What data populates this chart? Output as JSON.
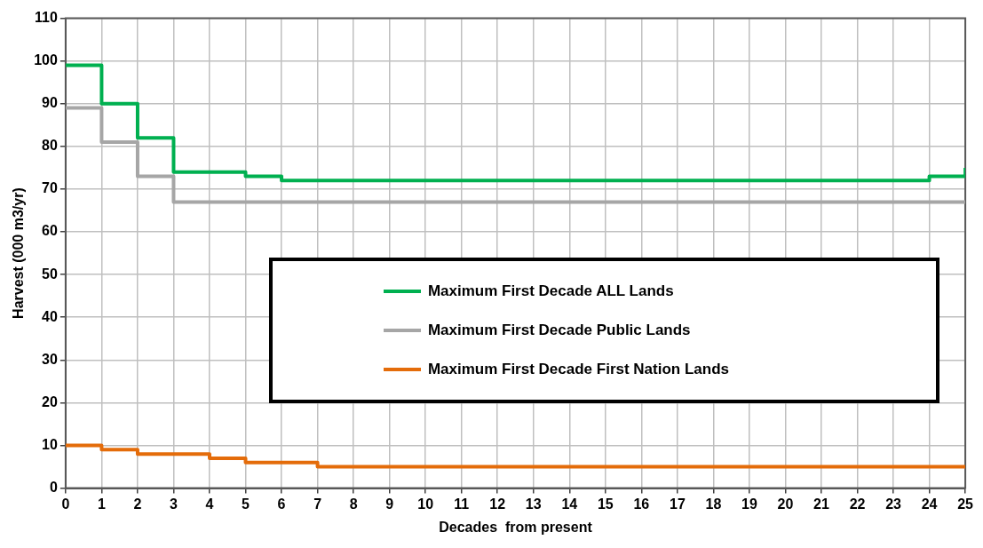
{
  "chart_data": {
    "type": "step",
    "xlabel": "Decades  from present",
    "ylabel": "Harvest (000 m3/yr)",
    "x": [
      0,
      1,
      2,
      3,
      4,
      5,
      6,
      7,
      8,
      9,
      10,
      11,
      12,
      13,
      14,
      15,
      16,
      17,
      18,
      19,
      20,
      21,
      22,
      23,
      24,
      25
    ],
    "series": [
      {
        "name": "Maximum First Decade ALL Lands",
        "color": "#00b050",
        "values": [
          99,
          90,
          82,
          74,
          74,
          73,
          72,
          72,
          72,
          72,
          72,
          72,
          72,
          72,
          72,
          72,
          72,
          72,
          72,
          72,
          72,
          72,
          72,
          72,
          73,
          75
        ]
      },
      {
        "name": "Maximum First Decade Public Lands",
        "color": "#a6a6a6",
        "values": [
          89,
          81,
          73,
          67,
          67,
          67,
          67,
          67,
          67,
          67,
          67,
          67,
          67,
          67,
          67,
          67,
          67,
          67,
          67,
          67,
          67,
          67,
          67,
          67,
          67,
          67
        ]
      },
      {
        "name": "Maximum First Decade First Nation Lands",
        "color": "#e46c0a",
        "values": [
          10,
          9,
          8,
          8,
          7,
          6,
          6,
          5,
          5,
          5,
          5,
          5,
          5,
          5,
          5,
          5,
          5,
          5,
          5,
          5,
          5,
          5,
          5,
          5,
          5,
          5
        ]
      }
    ],
    "xlim": [
      0,
      25
    ],
    "xticks": [
      0,
      1,
      2,
      3,
      4,
      5,
      6,
      7,
      8,
      9,
      10,
      11,
      12,
      13,
      14,
      15,
      16,
      17,
      18,
      19,
      20,
      21,
      22,
      23,
      24,
      25
    ],
    "ylim": [
      0,
      110
    ],
    "yticks": [
      0,
      10,
      20,
      30,
      40,
      50,
      60,
      70,
      80,
      90,
      100,
      110
    ],
    "grid": true,
    "legend": "center right",
    "line_style": "solid"
  }
}
